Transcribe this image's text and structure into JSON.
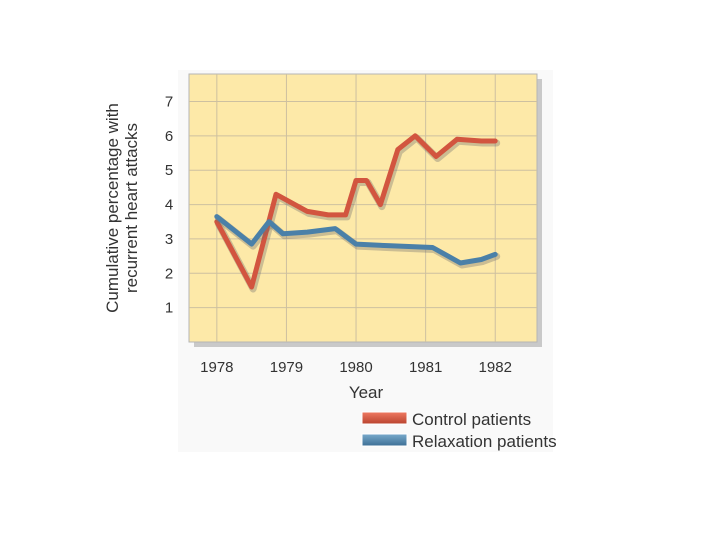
{
  "chart_data": {
    "type": "line",
    "title": "",
    "xlabel": "Year",
    "ylabel_lines": [
      "Cumulative percentage with",
      "recurrent heart attacks"
    ],
    "xlim": [
      1977.6,
      1982.6
    ],
    "ylim": [
      0,
      7.8
    ],
    "x_ticks": [
      1978,
      1979,
      1980,
      1981,
      1982
    ],
    "x_tick_labels": [
      "1978",
      "1979",
      "1980",
      "1981",
      "1982"
    ],
    "y_ticks": [
      1,
      2,
      3,
      4,
      5,
      6,
      7
    ],
    "y_tick_labels": [
      "1",
      "2",
      "3",
      "4",
      "5",
      "6",
      "7"
    ],
    "grid": true,
    "legend_position": "bottom-right",
    "series": [
      {
        "name": "Control patients",
        "color": "#d2553f",
        "x": [
          1978.0,
          1978.5,
          1978.85,
          1979.3,
          1979.6,
          1979.85,
          1980.0,
          1980.15,
          1980.35,
          1980.6,
          1980.85,
          1981.15,
          1981.45,
          1981.8,
          1982.0
        ],
        "y": [
          3.5,
          1.6,
          4.3,
          3.8,
          3.7,
          3.7,
          4.7,
          4.7,
          4.0,
          5.6,
          6.0,
          5.4,
          5.9,
          5.85,
          5.85
        ]
      },
      {
        "name": "Relaxation patients",
        "color": "#4a80a8",
        "x": [
          1978.0,
          1978.5,
          1978.75,
          1978.95,
          1979.3,
          1979.7,
          1980.0,
          1980.5,
          1981.1,
          1981.5,
          1981.8,
          1982.0
        ],
        "y": [
          3.65,
          2.85,
          3.5,
          3.15,
          3.2,
          3.3,
          2.85,
          2.8,
          2.75,
          2.3,
          2.4,
          2.55
        ]
      }
    ]
  }
}
